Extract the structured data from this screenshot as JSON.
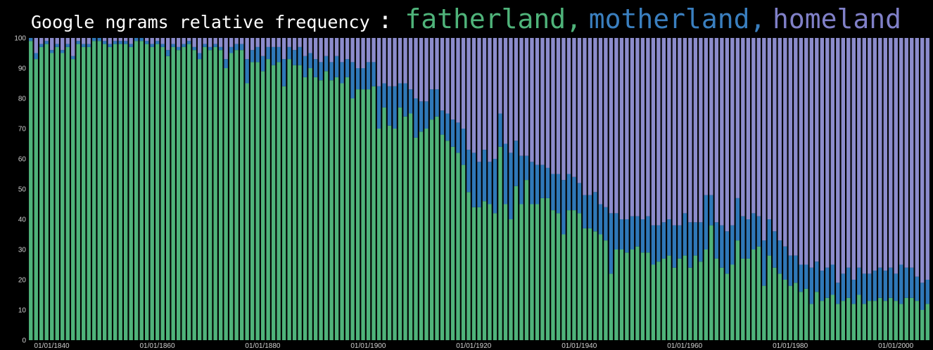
{
  "title": {
    "prefix": "Google ngrams relative frequency",
    "separator": ":",
    "words": [
      {
        "text": "fatherland,",
        "color": "#4fb37a"
      },
      {
        "text": "motherland,",
        "color": "#3a7fbf"
      },
      {
        "text": "homeland",
        "color": "#8080c8"
      }
    ]
  },
  "chart_data": {
    "type": "bar",
    "stacked": true,
    "normalized": true,
    "ylim": [
      0,
      100
    ],
    "yticks": [
      0,
      10,
      20,
      30,
      40,
      50,
      60,
      70,
      80,
      90,
      100
    ],
    "xlim": [
      1839,
      2009
    ],
    "xticks": [
      {
        "year": 1840,
        "label": "01/01/1840"
      },
      {
        "year": 1860,
        "label": "01/01/1860"
      },
      {
        "year": 1880,
        "label": "01/01/1880"
      },
      {
        "year": 1900,
        "label": "01/01/1900"
      },
      {
        "year": 1920,
        "label": "01/01/1920"
      },
      {
        "year": 1940,
        "label": "01/01/1940"
      },
      {
        "year": 1960,
        "label": "01/01/1960"
      },
      {
        "year": 1980,
        "label": "01/01/1980"
      },
      {
        "year": 2000,
        "label": "01/01/2000"
      }
    ],
    "grid": false,
    "background": "#000000",
    "series_colors": {
      "fatherland": "#4fb37a",
      "motherland": "#2f78b8",
      "homeland": "#8c8ccc"
    },
    "years": [
      1839,
      1840,
      1841,
      1842,
      1843,
      1844,
      1845,
      1846,
      1847,
      1848,
      1849,
      1850,
      1851,
      1852,
      1853,
      1854,
      1855,
      1856,
      1857,
      1858,
      1859,
      1860,
      1861,
      1862,
      1863,
      1864,
      1865,
      1866,
      1867,
      1868,
      1869,
      1870,
      1871,
      1872,
      1873,
      1874,
      1875,
      1876,
      1877,
      1878,
      1879,
      1880,
      1881,
      1882,
      1883,
      1884,
      1885,
      1886,
      1887,
      1888,
      1889,
      1890,
      1891,
      1892,
      1893,
      1894,
      1895,
      1896,
      1897,
      1898,
      1899,
      1900,
      1901,
      1902,
      1903,
      1904,
      1905,
      1906,
      1907,
      1908,
      1909,
      1910,
      1911,
      1912,
      1913,
      1914,
      1915,
      1916,
      1917,
      1918,
      1919,
      1920,
      1921,
      1922,
      1923,
      1924,
      1925,
      1926,
      1927,
      1928,
      1929,
      1930,
      1931,
      1932,
      1933,
      1934,
      1935,
      1936,
      1937,
      1938,
      1939,
      1940,
      1941,
      1942,
      1943,
      1944,
      1945,
      1946,
      1947,
      1948,
      1949,
      1950,
      1951,
      1952,
      1953,
      1954,
      1955,
      1956,
      1957,
      1958,
      1959,
      1960,
      1961,
      1962,
      1963,
      1964,
      1965,
      1966,
      1967,
      1968,
      1969,
      1970,
      1971,
      1972,
      1973,
      1974,
      1975,
      1976,
      1977,
      1978,
      1979,
      1980,
      1981,
      1982,
      1983,
      1984,
      1985,
      1986,
      1987,
      1988,
      1989,
      1990,
      1991,
      1992,
      1993,
      1994,
      1995,
      1996,
      1997,
      1998,
      1999,
      2000,
      2001,
      2002,
      2003,
      2004,
      2005,
      2006,
      2007,
      2008,
      2009
    ],
    "fatherland": [
      99,
      93,
      97,
      98,
      95,
      97,
      95,
      97,
      93,
      98,
      97,
      97,
      99,
      99,
      98,
      97,
      98,
      98,
      98,
      97,
      99,
      99,
      98,
      97,
      98,
      97,
      94,
      97,
      96,
      97,
      98,
      96,
      93,
      97,
      96,
      97,
      96,
      90,
      95,
      96,
      96,
      85,
      92,
      92,
      89,
      93,
      91,
      92,
      84,
      93,
      91,
      91,
      87,
      90,
      87,
      86,
      89,
      86,
      87,
      85,
      87,
      80,
      83,
      83,
      83,
      84,
      70,
      77,
      71,
      70,
      77,
      74,
      75,
      67,
      69,
      70,
      73,
      74,
      68,
      66,
      64,
      62,
      58,
      49,
      44,
      44,
      46,
      45,
      42,
      64,
      45,
      40,
      51,
      45,
      53,
      45,
      45,
      47,
      47,
      43,
      42,
      35,
      43,
      43,
      42,
      37,
      37,
      36,
      35,
      33,
      22,
      30,
      30,
      29,
      30,
      31,
      29,
      29,
      25,
      26,
      27,
      28,
      24,
      27,
      28,
      24,
      28,
      26,
      30,
      38,
      27,
      24,
      22,
      25,
      33,
      27,
      27,
      30,
      31,
      18,
      28,
      24,
      22,
      20,
      18,
      19,
      16,
      17,
      12,
      16,
      13,
      14,
      15,
      12,
      13,
      14,
      12,
      15,
      12,
      13,
      13,
      14,
      13,
      14,
      13,
      12,
      14,
      14,
      13,
      10,
      12,
      11,
      10,
      12,
      19
    ],
    "motherland": [
      1,
      2,
      1,
      1,
      1,
      1,
      1,
      1,
      1,
      1,
      1,
      1,
      1,
      1,
      1,
      1,
      1,
      1,
      1,
      1,
      1,
      1,
      1,
      1,
      1,
      1,
      2,
      1,
      1,
      1,
      1,
      1,
      2,
      1,
      1,
      1,
      1,
      3,
      2,
      2,
      2,
      8,
      4,
      5,
      5,
      4,
      6,
      5,
      9,
      4,
      5,
      6,
      7,
      5,
      6,
      6,
      5,
      6,
      7,
      7,
      6,
      12,
      7,
      7,
      9,
      8,
      14,
      8,
      13,
      14,
      8,
      11,
      8,
      13,
      10,
      9,
      10,
      9,
      8,
      9,
      9,
      10,
      12,
      14,
      18,
      15,
      17,
      14,
      18,
      11,
      20,
      22,
      15,
      16,
      8,
      14,
      13,
      11,
      10,
      12,
      13,
      18,
      12,
      11,
      10,
      11,
      11,
      13,
      10,
      11,
      20,
      12,
      10,
      11,
      11,
      10,
      11,
      12,
      13,
      12,
      12,
      12,
      14,
      11,
      14,
      15,
      11,
      13,
      18,
      10,
      12,
      14,
      14,
      13,
      14,
      14,
      13,
      12,
      10,
      15,
      12,
      12,
      11,
      11,
      10,
      9,
      9,
      8,
      12,
      10,
      10,
      10,
      10,
      7,
      9,
      10,
      8,
      9,
      10,
      9,
      10,
      10,
      10,
      10,
      9,
      13,
      10,
      10,
      8,
      9,
      8,
      8,
      7,
      8,
      8
    ],
    "homeland": [
      0,
      5,
      2,
      1,
      4,
      2,
      4,
      2,
      6,
      1,
      2,
      2,
      0,
      0,
      1,
      2,
      1,
      1,
      1,
      2,
      0,
      0,
      1,
      2,
      1,
      2,
      4,
      2,
      3,
      2,
      1,
      3,
      5,
      2,
      3,
      2,
      3,
      7,
      3,
      2,
      2,
      7,
      4,
      3,
      6,
      3,
      3,
      3,
      7,
      3,
      4,
      3,
      6,
      5,
      7,
      8,
      6,
      8,
      6,
      8,
      7,
      8,
      10,
      10,
      8,
      8,
      16,
      15,
      16,
      16,
      15,
      15,
      17,
      20,
      21,
      21,
      17,
      17,
      24,
      25,
      27,
      28,
      30,
      37,
      38,
      41,
      37,
      41,
      40,
      25,
      35,
      38,
      34,
      39,
      39,
      41,
      42,
      42,
      43,
      45,
      45,
      47,
      45,
      46,
      48,
      52,
      52,
      51,
      55,
      56,
      58,
      58,
      60,
      60,
      59,
      59,
      60,
      59,
      62,
      62,
      61,
      60,
      62,
      62,
      58,
      61,
      61,
      61,
      52,
      52,
      61,
      62,
      64,
      62,
      53,
      59,
      60,
      58,
      59,
      67,
      60,
      64,
      67,
      69,
      72,
      72,
      75,
      75,
      76,
      74,
      77,
      76,
      75,
      81,
      78,
      76,
      80,
      76,
      78,
      78,
      77,
      76,
      77,
      76,
      78,
      75,
      76,
      76,
      79,
      81,
      80,
      81,
      83,
      80,
      73
    ]
  }
}
